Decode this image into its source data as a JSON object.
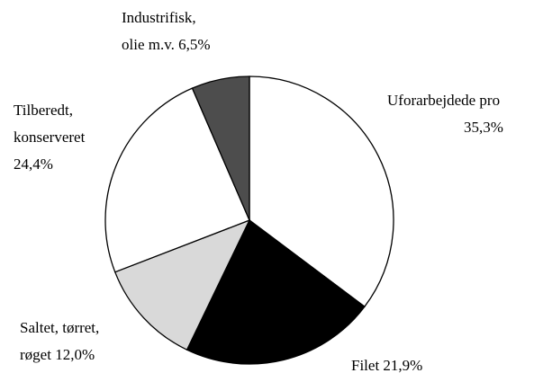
{
  "chart_data": {
    "type": "pie",
    "categories": [
      [
        "Uforarbejdede pro"
      ],
      [
        "Filet"
      ],
      [
        "Saltet, tørret,",
        "røget"
      ],
      [
        "Tilberedt,",
        "konserveret"
      ],
      [
        "Industrifisk,",
        "olie m.v."
      ]
    ],
    "values": [
      35.3,
      21.9,
      12.0,
      24.4,
      6.5
    ],
    "value_labels": [
      "35,3%",
      "21,9%",
      "12,0%",
      "24,4%",
      "6,5%"
    ],
    "colors": [
      "#ffffff",
      "#000000",
      "#d9d9d9",
      "#ffffff",
      "#4d4d4d"
    ]
  }
}
